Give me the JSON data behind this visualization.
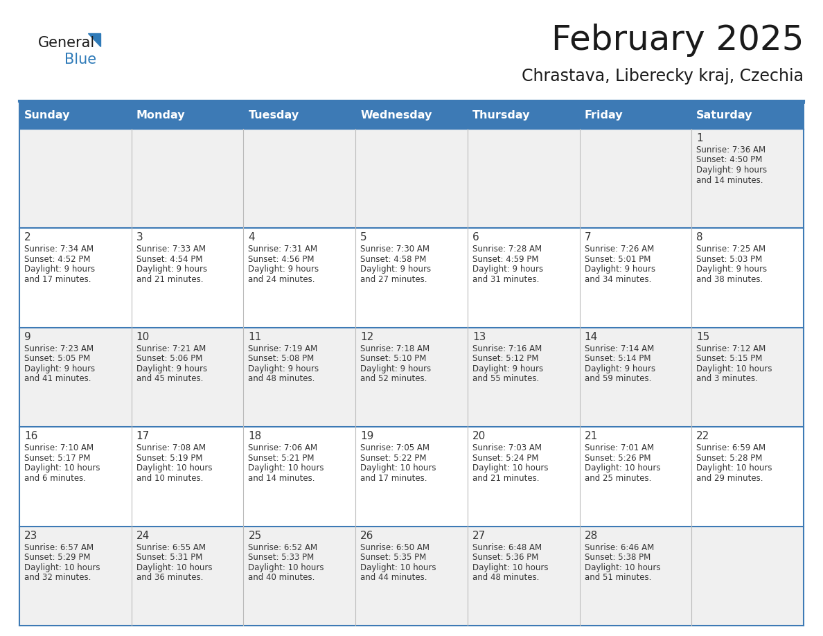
{
  "title": "February 2025",
  "subtitle": "Chrastava, Liberecky kraj, Czechia",
  "header_bg": "#3d7ab5",
  "header_text": "#ffffff",
  "cell_bg_row0": "#f0f0f0",
  "cell_bg_row1": "#ffffff",
  "cell_bg_row2": "#f0f0f0",
  "cell_bg_row3": "#ffffff",
  "cell_bg_row4": "#f0f0f0",
  "grid_line_color": "#3d7ab5",
  "day_headers": [
    "Sunday",
    "Monday",
    "Tuesday",
    "Wednesday",
    "Thursday",
    "Friday",
    "Saturday"
  ],
  "title_color": "#1a1a1a",
  "subtitle_color": "#1a1a1a",
  "text_color": "#333333",
  "days": [
    {
      "day": 1,
      "col": 6,
      "row": 0,
      "sunrise": "7:36 AM",
      "sunset": "4:50 PM",
      "daylight_h": "9 hours",
      "daylight_m": "14 minutes."
    },
    {
      "day": 2,
      "col": 0,
      "row": 1,
      "sunrise": "7:34 AM",
      "sunset": "4:52 PM",
      "daylight_h": "9 hours",
      "daylight_m": "17 minutes."
    },
    {
      "day": 3,
      "col": 1,
      "row": 1,
      "sunrise": "7:33 AM",
      "sunset": "4:54 PM",
      "daylight_h": "9 hours",
      "daylight_m": "21 minutes."
    },
    {
      "day": 4,
      "col": 2,
      "row": 1,
      "sunrise": "7:31 AM",
      "sunset": "4:56 PM",
      "daylight_h": "9 hours",
      "daylight_m": "24 minutes."
    },
    {
      "day": 5,
      "col": 3,
      "row": 1,
      "sunrise": "7:30 AM",
      "sunset": "4:58 PM",
      "daylight_h": "9 hours",
      "daylight_m": "27 minutes."
    },
    {
      "day": 6,
      "col": 4,
      "row": 1,
      "sunrise": "7:28 AM",
      "sunset": "4:59 PM",
      "daylight_h": "9 hours",
      "daylight_m": "31 minutes."
    },
    {
      "day": 7,
      "col": 5,
      "row": 1,
      "sunrise": "7:26 AM",
      "sunset": "5:01 PM",
      "daylight_h": "9 hours",
      "daylight_m": "34 minutes."
    },
    {
      "day": 8,
      "col": 6,
      "row": 1,
      "sunrise": "7:25 AM",
      "sunset": "5:03 PM",
      "daylight_h": "9 hours",
      "daylight_m": "38 minutes."
    },
    {
      "day": 9,
      "col": 0,
      "row": 2,
      "sunrise": "7:23 AM",
      "sunset": "5:05 PM",
      "daylight_h": "9 hours",
      "daylight_m": "41 minutes."
    },
    {
      "day": 10,
      "col": 1,
      "row": 2,
      "sunrise": "7:21 AM",
      "sunset": "5:06 PM",
      "daylight_h": "9 hours",
      "daylight_m": "45 minutes."
    },
    {
      "day": 11,
      "col": 2,
      "row": 2,
      "sunrise": "7:19 AM",
      "sunset": "5:08 PM",
      "daylight_h": "9 hours",
      "daylight_m": "48 minutes."
    },
    {
      "day": 12,
      "col": 3,
      "row": 2,
      "sunrise": "7:18 AM",
      "sunset": "5:10 PM",
      "daylight_h": "9 hours",
      "daylight_m": "52 minutes."
    },
    {
      "day": 13,
      "col": 4,
      "row": 2,
      "sunrise": "7:16 AM",
      "sunset": "5:12 PM",
      "daylight_h": "9 hours",
      "daylight_m": "55 minutes."
    },
    {
      "day": 14,
      "col": 5,
      "row": 2,
      "sunrise": "7:14 AM",
      "sunset": "5:14 PM",
      "daylight_h": "9 hours",
      "daylight_m": "59 minutes."
    },
    {
      "day": 15,
      "col": 6,
      "row": 2,
      "sunrise": "7:12 AM",
      "sunset": "5:15 PM",
      "daylight_h": "10 hours",
      "daylight_m": "3 minutes."
    },
    {
      "day": 16,
      "col": 0,
      "row": 3,
      "sunrise": "7:10 AM",
      "sunset": "5:17 PM",
      "daylight_h": "10 hours",
      "daylight_m": "6 minutes."
    },
    {
      "day": 17,
      "col": 1,
      "row": 3,
      "sunrise": "7:08 AM",
      "sunset": "5:19 PM",
      "daylight_h": "10 hours",
      "daylight_m": "10 minutes."
    },
    {
      "day": 18,
      "col": 2,
      "row": 3,
      "sunrise": "7:06 AM",
      "sunset": "5:21 PM",
      "daylight_h": "10 hours",
      "daylight_m": "14 minutes."
    },
    {
      "day": 19,
      "col": 3,
      "row": 3,
      "sunrise": "7:05 AM",
      "sunset": "5:22 PM",
      "daylight_h": "10 hours",
      "daylight_m": "17 minutes."
    },
    {
      "day": 20,
      "col": 4,
      "row": 3,
      "sunrise": "7:03 AM",
      "sunset": "5:24 PM",
      "daylight_h": "10 hours",
      "daylight_m": "21 minutes."
    },
    {
      "day": 21,
      "col": 5,
      "row": 3,
      "sunrise": "7:01 AM",
      "sunset": "5:26 PM",
      "daylight_h": "10 hours",
      "daylight_m": "25 minutes."
    },
    {
      "day": 22,
      "col": 6,
      "row": 3,
      "sunrise": "6:59 AM",
      "sunset": "5:28 PM",
      "daylight_h": "10 hours",
      "daylight_m": "29 minutes."
    },
    {
      "day": 23,
      "col": 0,
      "row": 4,
      "sunrise": "6:57 AM",
      "sunset": "5:29 PM",
      "daylight_h": "10 hours",
      "daylight_m": "32 minutes."
    },
    {
      "day": 24,
      "col": 1,
      "row": 4,
      "sunrise": "6:55 AM",
      "sunset": "5:31 PM",
      "daylight_h": "10 hours",
      "daylight_m": "36 minutes."
    },
    {
      "day": 25,
      "col": 2,
      "row": 4,
      "sunrise": "6:52 AM",
      "sunset": "5:33 PM",
      "daylight_h": "10 hours",
      "daylight_m": "40 minutes."
    },
    {
      "day": 26,
      "col": 3,
      "row": 4,
      "sunrise": "6:50 AM",
      "sunset": "5:35 PM",
      "daylight_h": "10 hours",
      "daylight_m": "44 minutes."
    },
    {
      "day": 27,
      "col": 4,
      "row": 4,
      "sunrise": "6:48 AM",
      "sunset": "5:36 PM",
      "daylight_h": "10 hours",
      "daylight_m": "48 minutes."
    },
    {
      "day": 28,
      "col": 5,
      "row": 4,
      "sunrise": "6:46 AM",
      "sunset": "5:38 PM",
      "daylight_h": "10 hours",
      "daylight_m": "51 minutes."
    }
  ],
  "num_rows": 5,
  "num_cols": 7
}
